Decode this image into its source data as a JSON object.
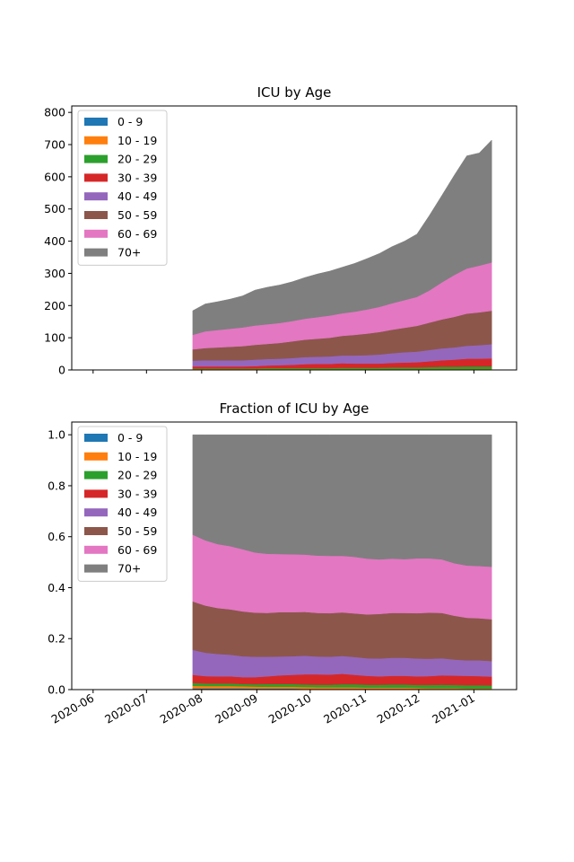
{
  "chart_data": [
    {
      "type": "area",
      "title": "ICU by Age",
      "xlabel": "",
      "ylabel": "",
      "x": [
        "2020-07-27",
        "2020-08-03",
        "2020-08-10",
        "2020-08-17",
        "2020-08-24",
        "2020-08-31",
        "2020-09-07",
        "2020-09-14",
        "2020-09-21",
        "2020-09-28",
        "2020-10-05",
        "2020-10-12",
        "2020-10-19",
        "2020-10-26",
        "2020-11-02",
        "2020-11-09",
        "2020-11-16",
        "2020-11-23",
        "2020-11-30",
        "2020-12-07",
        "2020-12-14",
        "2020-12-21",
        "2020-12-28",
        "2021-01-04",
        "2021-01-11"
      ],
      "x_range": [
        "2020-05-20",
        "2021-01-25"
      ],
      "ylim": [
        0,
        820
      ],
      "yticks": [
        0,
        100,
        200,
        300,
        400,
        500,
        600,
        700,
        800
      ],
      "xticks": [
        "2020-06",
        "2020-07",
        "2020-08",
        "2020-09",
        "2020-10",
        "2020-11",
        "2020-12",
        "2021-01"
      ],
      "show_xtick_labels": false,
      "grid": false,
      "legend_position": "upper-left",
      "series": [
        {
          "name": "0 - 9",
          "color": "#1f77b4",
          "values": [
            1,
            1,
            1,
            1,
            1,
            1,
            1,
            1,
            1,
            1,
            1,
            1,
            1,
            1,
            1,
            1,
            1,
            1,
            1,
            1,
            1,
            1,
            1,
            1,
            1
          ]
        },
        {
          "name": "10 - 19",
          "color": "#ff7f0e",
          "values": [
            2,
            2,
            2,
            2,
            2,
            2,
            2,
            2,
            2,
            2,
            2,
            2,
            2,
            2,
            2,
            2,
            2,
            2,
            2,
            2,
            2,
            2,
            2,
            2,
            2
          ]
        },
        {
          "name": "20 - 29",
          "color": "#2ca02c",
          "values": [
            2,
            2,
            2,
            2,
            2,
            2,
            3,
            3,
            3,
            3,
            3,
            3,
            4,
            4,
            4,
            4,
            5,
            5,
            5,
            6,
            7,
            7,
            8,
            8,
            8
          ]
        },
        {
          "name": "30 - 39",
          "color": "#d62728",
          "values": [
            6,
            6,
            6,
            6,
            6,
            7,
            8,
            9,
            10,
            12,
            13,
            13,
            14,
            13,
            13,
            13,
            14,
            15,
            16,
            18,
            20,
            22,
            24,
            24,
            25
          ]
        },
        {
          "name": "40 - 49",
          "color": "#9467bd",
          "values": [
            18,
            19,
            19,
            19,
            19,
            20,
            20,
            20,
            21,
            22,
            22,
            23,
            24,
            25,
            26,
            28,
            30,
            32,
            33,
            35,
            37,
            38,
            40,
            42,
            44
          ]
        },
        {
          "name": "50 - 59",
          "color": "#8c564b",
          "values": [
            35,
            38,
            40,
            42,
            44,
            46,
            47,
            49,
            52,
            54,
            56,
            58,
            61,
            64,
            67,
            70,
            73,
            76,
            80,
            85,
            90,
            95,
            100,
            102,
            104
          ]
        },
        {
          "name": "60 - 69",
          "color": "#e377c2",
          "values": [
            45,
            52,
            54,
            56,
            58,
            60,
            61,
            62,
            63,
            65,
            67,
            69,
            70,
            72,
            75,
            78,
            82,
            86,
            90,
            100,
            115,
            130,
            140,
            145,
            150
          ]
        },
        {
          "name": "70+",
          "color": "#7f7f7f",
          "values": [
            75,
            85,
            88,
            92,
            98,
            110,
            115,
            118,
            122,
            128,
            134,
            138,
            143,
            150,
            158,
            166,
            176,
            183,
            195,
            233,
            270,
            310,
            350,
            350,
            380
          ]
        }
      ]
    },
    {
      "type": "area",
      "title": "Fraction of ICU by Age",
      "xlabel": "",
      "ylabel": "",
      "x": [
        "2020-07-27",
        "2020-08-03",
        "2020-08-10",
        "2020-08-17",
        "2020-08-24",
        "2020-08-31",
        "2020-09-07",
        "2020-09-14",
        "2020-09-21",
        "2020-09-28",
        "2020-10-05",
        "2020-10-12",
        "2020-10-19",
        "2020-10-26",
        "2020-11-02",
        "2020-11-09",
        "2020-11-16",
        "2020-11-23",
        "2020-11-30",
        "2020-12-07",
        "2020-12-14",
        "2020-12-21",
        "2020-12-28",
        "2021-01-04",
        "2021-01-11"
      ],
      "x_range": [
        "2020-05-20",
        "2021-01-25"
      ],
      "ylim": [
        0,
        1.05
      ],
      "yticks": [
        "0.0",
        "0.2",
        "0.4",
        "0.6",
        "0.8",
        "1.0"
      ],
      "xticks": [
        "2020-06",
        "2020-07",
        "2020-08",
        "2020-09",
        "2020-10",
        "2020-11",
        "2020-12",
        "2021-01"
      ],
      "show_xtick_labels": true,
      "grid": false,
      "legend_position": "upper-left",
      "series": [
        {
          "name": "0 - 9",
          "color": "#1f77b4",
          "values": [
            0.005,
            0.005,
            0.005,
            0.005,
            0.005,
            0.004,
            0.004,
            0.004,
            0.004,
            0.003,
            0.003,
            0.003,
            0.003,
            0.003,
            0.003,
            0.003,
            0.003,
            0.003,
            0.002,
            0.002,
            0.002,
            0.002,
            0.002,
            0.002,
            0.002
          ]
        },
        {
          "name": "10 - 19",
          "color": "#ff7f0e",
          "values": [
            0.01,
            0.009,
            0.009,
            0.009,
            0.008,
            0.008,
            0.007,
            0.007,
            0.007,
            0.007,
            0.006,
            0.006,
            0.006,
            0.006,
            0.005,
            0.005,
            0.005,
            0.005,
            0.005,
            0.004,
            0.004,
            0.004,
            0.003,
            0.003,
            0.003
          ]
        },
        {
          "name": "20 - 29",
          "color": "#2ca02c",
          "values": [
            0.011,
            0.01,
            0.01,
            0.01,
            0.009,
            0.009,
            0.011,
            0.011,
            0.011,
            0.01,
            0.01,
            0.01,
            0.012,
            0.012,
            0.011,
            0.011,
            0.012,
            0.012,
            0.011,
            0.012,
            0.013,
            0.012,
            0.012,
            0.012,
            0.011
          ]
        },
        {
          "name": "30 - 39",
          "color": "#d62728",
          "values": [
            0.032,
            0.029,
            0.028,
            0.028,
            0.027,
            0.028,
            0.03,
            0.034,
            0.036,
            0.04,
            0.041,
            0.04,
            0.041,
            0.037,
            0.035,
            0.033,
            0.034,
            0.034,
            0.034,
            0.035,
            0.037,
            0.037,
            0.037,
            0.036,
            0.035
          ]
        },
        {
          "name": "40 - 49",
          "color": "#9467bd",
          "values": [
            0.098,
            0.092,
            0.088,
            0.085,
            0.082,
            0.08,
            0.077,
            0.074,
            0.073,
            0.073,
            0.07,
            0.07,
            0.07,
            0.07,
            0.069,
            0.07,
            0.071,
            0.071,
            0.07,
            0.068,
            0.067,
            0.063,
            0.061,
            0.062,
            0.061
          ]
        },
        {
          "name": "50 - 59",
          "color": "#8c564b",
          "values": [
            0.19,
            0.185,
            0.18,
            0.178,
            0.176,
            0.173,
            0.172,
            0.174,
            0.173,
            0.172,
            0.171,
            0.171,
            0.171,
            0.171,
            0.172,
            0.175,
            0.176,
            0.176,
            0.178,
            0.181,
            0.178,
            0.172,
            0.167,
            0.165,
            0.164
          ]
        },
        {
          "name": "60 - 69",
          "color": "#e377c2",
          "values": [
            0.262,
            0.256,
            0.251,
            0.248,
            0.244,
            0.236,
            0.232,
            0.228,
            0.227,
            0.225,
            0.225,
            0.225,
            0.222,
            0.222,
            0.219,
            0.214,
            0.213,
            0.211,
            0.215,
            0.213,
            0.21,
            0.206,
            0.205,
            0.205,
            0.206
          ]
        },
        {
          "name": "70+",
          "color": "#7f7f7f",
          "values": [
            0.392,
            0.414,
            0.429,
            0.437,
            0.449,
            0.462,
            0.467,
            0.468,
            0.469,
            0.47,
            0.474,
            0.475,
            0.475,
            0.479,
            0.486,
            0.489,
            0.486,
            0.488,
            0.485,
            0.485,
            0.489,
            0.504,
            0.513,
            0.515,
            0.518
          ]
        }
      ]
    }
  ]
}
